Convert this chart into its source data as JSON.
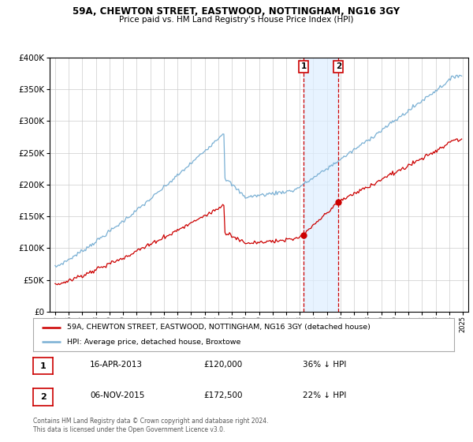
{
  "title": "59A, CHEWTON STREET, EASTWOOD, NOTTINGHAM, NG16 3GY",
  "subtitle": "Price paid vs. HM Land Registry's House Price Index (HPI)",
  "red_legend": "59A, CHEWTON STREET, EASTWOOD, NOTTINGHAM, NG16 3GY (detached house)",
  "blue_legend": "HPI: Average price, detached house, Broxtowe",
  "transaction1_date": "16-APR-2013",
  "transaction1_price": 120000,
  "transaction1_hpi": "36% ↓ HPI",
  "transaction2_date": "06-NOV-2015",
  "transaction2_price": 172500,
  "transaction2_hpi": "22% ↓ HPI",
  "footer": "Contains HM Land Registry data © Crown copyright and database right 2024.\nThis data is licensed under the Open Government Licence v3.0.",
  "ylim": [
    0,
    400000
  ],
  "yticks": [
    0,
    50000,
    100000,
    150000,
    200000,
    250000,
    300000,
    350000,
    400000
  ],
  "red_color": "#cc0000",
  "blue_color": "#7ab0d4",
  "background_color": "#ffffff",
  "grid_color": "#cccccc",
  "t1_year": 2013.29,
  "t2_year": 2015.845
}
